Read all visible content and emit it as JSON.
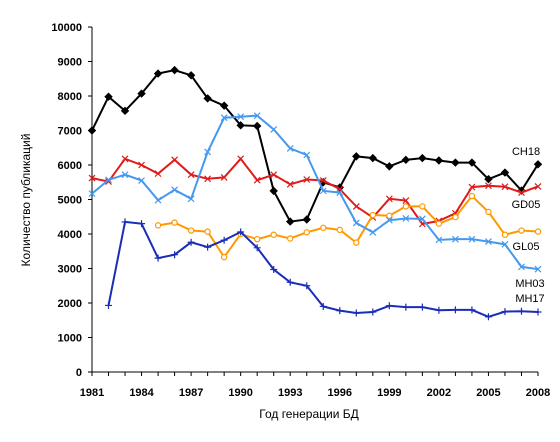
{
  "chart_data": {
    "type": "line",
    "xlabel": "Год генерации БД",
    "ylabel": "Количество публикаций",
    "ylim": [
      0,
      10000
    ],
    "yticks": [
      0,
      1000,
      2000,
      3000,
      4000,
      5000,
      6000,
      7000,
      8000,
      9000,
      10000
    ],
    "xlim": [
      1981,
      2008
    ],
    "xticks": [
      1981,
      1984,
      1987,
      1990,
      1993,
      1996,
      1999,
      2002,
      2005,
      2008
    ],
    "grid": false,
    "legend": "none",
    "series": [
      {
        "name": "CH18",
        "color": "#000000",
        "marker": "diamond",
        "x": [
          1981,
          1982,
          1983,
          1984,
          1985,
          1986,
          1987,
          1988,
          1989,
          1990,
          1991,
          1992,
          1993,
          1994,
          1995,
          1996,
          1997,
          1998,
          1999,
          2000,
          2001,
          2002,
          2003,
          2004,
          2005,
          2006,
          2007,
          2008
        ],
        "y": [
          7000,
          7980,
          7570,
          8070,
          8650,
          8750,
          8600,
          7930,
          7720,
          7150,
          7130,
          5250,
          4360,
          4420,
          5500,
          5350,
          6250,
          6200,
          5960,
          6150,
          6200,
          6130,
          6070,
          6070,
          5590,
          5780,
          5260,
          6020
        ]
      },
      {
        "name": "GD05",
        "color": "#e11a1a",
        "marker": "x",
        "x": [
          1981,
          1982,
          1983,
          1984,
          1985,
          1986,
          1987,
          1988,
          1989,
          1990,
          1991,
          1992,
          1993,
          1994,
          1995,
          1996,
          1997,
          1998,
          1999,
          2000,
          2001,
          2002,
          2003,
          2004,
          2005,
          2006,
          2007,
          2008
        ],
        "y": [
          5620,
          5520,
          6180,
          6000,
          5750,
          6150,
          5720,
          5600,
          5640,
          6180,
          5560,
          5720,
          5440,
          5580,
          5550,
          5300,
          4800,
          4480,
          5020,
          4970,
          4290,
          4380,
          4600,
          5360,
          5400,
          5370,
          5200,
          5380
        ]
      },
      {
        "name": "GL05",
        "color": "#ff9900",
        "marker": "circle",
        "x": [
          1985,
          1986,
          1987,
          1988,
          1989,
          1990,
          1991,
          1992,
          1993,
          1994,
          1995,
          1996,
          1997,
          1998,
          1999,
          2000,
          2001,
          2002,
          2003,
          2004,
          2005,
          2006,
          2007,
          2008
        ],
        "y": [
          4250,
          4330,
          4100,
          4070,
          3330,
          4000,
          3850,
          3980,
          3870,
          4050,
          4180,
          4120,
          3750,
          4550,
          4530,
          4800,
          4800,
          4300,
          4490,
          5100,
          4640,
          3980,
          4100,
          4070
        ]
      },
      {
        "name": "MH03",
        "color": "#4499ee",
        "marker": "x",
        "x": [
          1981,
          1982,
          1983,
          1984,
          1985,
          1986,
          1987,
          1988,
          1989,
          1990,
          1991,
          1992,
          1993,
          1994,
          1995,
          1996,
          1997,
          1998,
          1999,
          2000,
          2001,
          2002,
          2003,
          2004,
          2005,
          2006,
          2007,
          2008
        ],
        "y": [
          5170,
          5570,
          5720,
          5550,
          4980,
          5280,
          5020,
          6380,
          7370,
          7400,
          7430,
          7030,
          6480,
          6290,
          5250,
          5200,
          4320,
          4050,
          4400,
          4450,
          4440,
          3830,
          3850,
          3850,
          3780,
          3700,
          3050,
          2980
        ]
      },
      {
        "name": "MH17",
        "color": "#1a2db8",
        "marker": "plus",
        "x": [
          1982,
          1983,
          1984,
          1985,
          1986,
          1987,
          1988,
          1989,
          1990,
          1991,
          1992,
          1993,
          1994,
          1995,
          1996,
          1997,
          1998,
          1999,
          2000,
          2001,
          2002,
          2003,
          2004,
          2005,
          2006,
          2007,
          2008
        ],
        "y": [
          1930,
          4350,
          4300,
          3300,
          3400,
          3760,
          3620,
          3820,
          4060,
          3600,
          2970,
          2600,
          2500,
          1900,
          1780,
          1710,
          1740,
          1920,
          1880,
          1880,
          1790,
          1800,
          1800,
          1600,
          1750,
          1760,
          1740
        ]
      }
    ],
    "series_labels": [
      "CH18",
      "GD05",
      "GL05",
      "MH03",
      "MH17"
    ]
  }
}
